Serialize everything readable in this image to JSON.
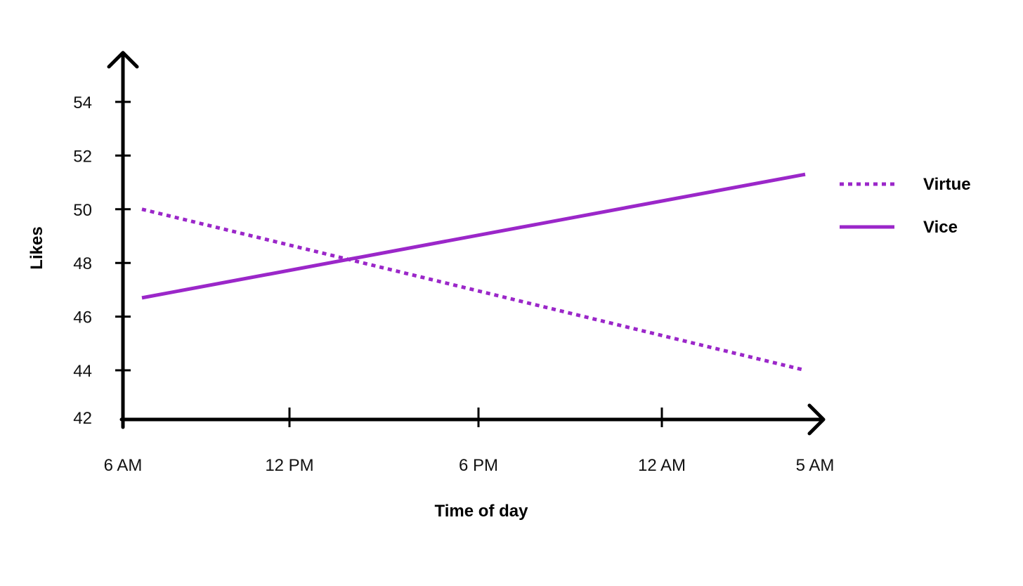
{
  "chart_data": {
    "type": "line",
    "title": "",
    "xlabel": "Time of day",
    "ylabel": "Likes",
    "categories": [
      "6 AM",
      "12 PM",
      "6 PM",
      "12 AM",
      "5 AM"
    ],
    "x_ticks": [
      "6 AM",
      "12 PM",
      "6 PM",
      "12 AM",
      "5 AM"
    ],
    "y_ticks": [
      42,
      44,
      46,
      48,
      50,
      52,
      54
    ],
    "ylim": [
      42,
      54
    ],
    "grid": false,
    "legend_position": "right",
    "series": [
      {
        "name": "Virtue",
        "style": "dotted",
        "color": "#9b27c9",
        "x": [
          "6 AM",
          "5 AM"
        ],
        "values": [
          50,
          44
        ]
      },
      {
        "name": "Vice",
        "style": "solid",
        "color": "#9b27c9",
        "x": [
          "6 AM",
          "5 AM"
        ],
        "values": [
          46.7,
          51.3
        ]
      }
    ]
  }
}
